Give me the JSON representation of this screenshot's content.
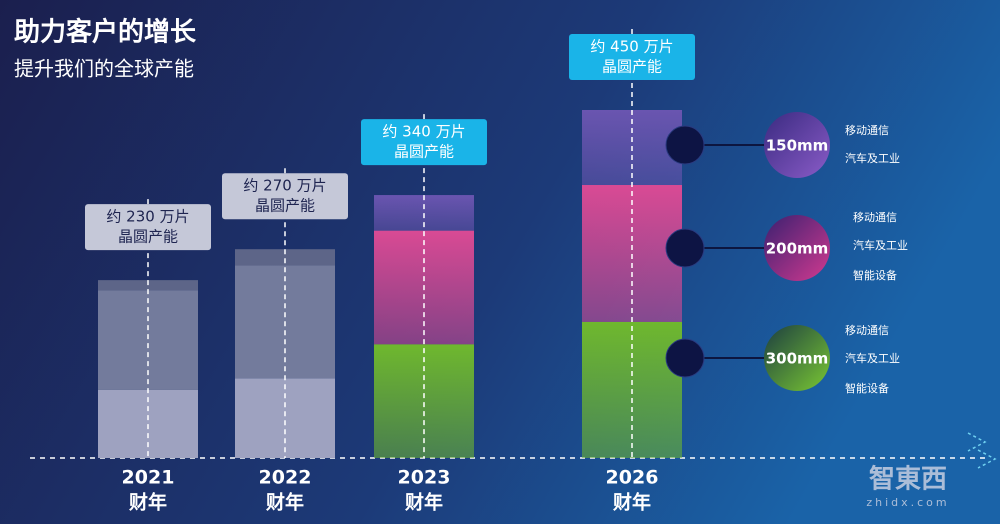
{
  "chart_data": {
    "type": "stacked_bar",
    "title": "助力客户的增长",
    "subtitle": "提升我们的全球产能",
    "categories": [
      "2021",
      "2022",
      "2023",
      "2026"
    ],
    "category_suffix": "财年",
    "totals": [
      230,
      270,
      340,
      450
    ],
    "value_labels": [
      "约 230 万片",
      "约 270 万片",
      "约 340 万片",
      "约 450 万片"
    ],
    "value_label_caption": "晶圆产能",
    "label_colors": [
      "#c5c8d8",
      "#c5c8d8",
      "#1ab4e8",
      "#1ab4e8"
    ],
    "ylim": [
      0,
      450
    ],
    "series": [
      {
        "name": "300mm",
        "values": [
          88,
          103,
          147,
          176
        ],
        "colors": [
          "#9ea2c0",
          "#9ea2c0",
          "#6fb82e",
          "#6fb82e"
        ],
        "applications": [
          "移动通信",
          "汽车及工业",
          "智能设备"
        ]
      },
      {
        "name": "200mm",
        "values": [
          129,
          146,
          147,
          177
        ],
        "colors": [
          "#737b9c",
          "#737b9c",
          "#d94a94",
          "#d94a94"
        ],
        "applications": [
          "移动通信",
          "汽车及工业",
          "智能设备"
        ]
      },
      {
        "name": "150mm",
        "values": [
          13,
          21,
          46,
          97
        ],
        "colors": [
          "#5d6588",
          "#5d6588",
          "#6a55b0",
          "#6a55b0"
        ],
        "applications": [
          "移动通信",
          "汽车及工业"
        ]
      }
    ],
    "watermark": "智東西",
    "watermark_url": "zhidx.com"
  }
}
